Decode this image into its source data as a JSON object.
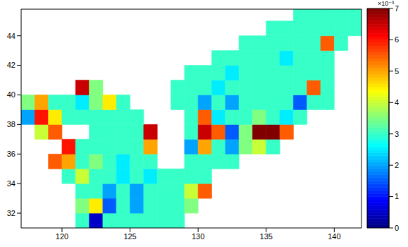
{
  "chart_data": {
    "type": "heatmap",
    "xlim": [
      117,
      142
    ],
    "ylim": [
      31,
      45.8
    ],
    "xticks": [
      120,
      125,
      130,
      135,
      140
    ],
    "yticks": [
      32,
      34,
      36,
      38,
      40,
      42,
      44
    ],
    "tick_labels": true,
    "grid": false,
    "cell_size": 1,
    "cells": [
      [
        121.5,
        31.5,
        3
      ],
      [
        122.5,
        31.5,
        0.5
      ],
      [
        123.5,
        31.5,
        3
      ],
      [
        124.5,
        31.5,
        3
      ],
      [
        125.5,
        31.5,
        3
      ],
      [
        126.5,
        31.5,
        3
      ],
      [
        127.5,
        31.5,
        3
      ],
      [
        128.5,
        31.5,
        3
      ],
      [
        121.5,
        32.5,
        3.5
      ],
      [
        122.5,
        32.5,
        4.5
      ],
      [
        123.5,
        32.5,
        1.5
      ],
      [
        124.5,
        32.5,
        3
      ],
      [
        125.5,
        32.5,
        2
      ],
      [
        126.5,
        32.5,
        3
      ],
      [
        127.5,
        32.5,
        3
      ],
      [
        128.5,
        32.5,
        3
      ],
      [
        129.5,
        32.5,
        3.5
      ],
      [
        121.5,
        33.5,
        3
      ],
      [
        122.5,
        33.5,
        3
      ],
      [
        123.5,
        33.5,
        2
      ],
      [
        124.5,
        33.5,
        3
      ],
      [
        125.5,
        33.5,
        2
      ],
      [
        126.5,
        33.5,
        3
      ],
      [
        127.5,
        33.5,
        3
      ],
      [
        128.5,
        33.5,
        3
      ],
      [
        129.5,
        33.5,
        4
      ],
      [
        130.5,
        33.5,
        5.5
      ],
      [
        120.5,
        34.5,
        3
      ],
      [
        121.5,
        34.5,
        4
      ],
      [
        122.5,
        34.5,
        3
      ],
      [
        123.5,
        34.5,
        3
      ],
      [
        124.5,
        34.5,
        2.5
      ],
      [
        125.5,
        34.5,
        3
      ],
      [
        126.5,
        34.5,
        2.5
      ],
      [
        127.5,
        34.5,
        3
      ],
      [
        128.5,
        34.5,
        3
      ],
      [
        129.5,
        34.5,
        3
      ],
      [
        130.5,
        34.5,
        3
      ],
      [
        119.5,
        35.5,
        5.5
      ],
      [
        120.5,
        35.5,
        5
      ],
      [
        121.5,
        35.5,
        3
      ],
      [
        122.5,
        35.5,
        3.5
      ],
      [
        123.5,
        35.5,
        3
      ],
      [
        124.5,
        35.5,
        2.5
      ],
      [
        125.5,
        35.5,
        3
      ],
      [
        126.5,
        35.5,
        3
      ],
      [
        129.5,
        35.5,
        3
      ],
      [
        130.5,
        35.5,
        3
      ],
      [
        131.5,
        35.5,
        3
      ],
      [
        132.5,
        35.5,
        3
      ],
      [
        120.5,
        36.5,
        6
      ],
      [
        121.5,
        36.5,
        3
      ],
      [
        122.5,
        36.5,
        3
      ],
      [
        123.5,
        36.5,
        3
      ],
      [
        124.5,
        36.5,
        3
      ],
      [
        125.5,
        36.5,
        3
      ],
      [
        126.5,
        36.5,
        5
      ],
      [
        129.5,
        36.5,
        2
      ],
      [
        130.5,
        36.5,
        5
      ],
      [
        131.5,
        36.5,
        3
      ],
      [
        132.5,
        36.5,
        2
      ],
      [
        133.5,
        36.5,
        3.5
      ],
      [
        134.5,
        36.5,
        4
      ],
      [
        135.5,
        36.5,
        3
      ],
      [
        118.5,
        37.5,
        4
      ],
      [
        119.5,
        37.5,
        5.5
      ],
      [
        122.5,
        37.5,
        3
      ],
      [
        123.5,
        37.5,
        3
      ],
      [
        124.5,
        37.5,
        3
      ],
      [
        125.5,
        37.5,
        3
      ],
      [
        126.5,
        37.5,
        6.5
      ],
      [
        129.5,
        37.5,
        3
      ],
      [
        130.5,
        37.5,
        6.5
      ],
      [
        131.5,
        37.5,
        5.5
      ],
      [
        132.5,
        37.5,
        1.5
      ],
      [
        133.5,
        37.5,
        3.5
      ],
      [
        134.5,
        37.5,
        7
      ],
      [
        135.5,
        37.5,
        7
      ],
      [
        136.5,
        37.5,
        5.5
      ],
      [
        117.5,
        38.5,
        2
      ],
      [
        118.5,
        38.5,
        6
      ],
      [
        119.5,
        38.5,
        4.5
      ],
      [
        120.5,
        38.5,
        3
      ],
      [
        121.5,
        38.5,
        3
      ],
      [
        122.5,
        38.5,
        3
      ],
      [
        123.5,
        38.5,
        3
      ],
      [
        124.5,
        38.5,
        3
      ],
      [
        125.5,
        38.5,
        3
      ],
      [
        129.5,
        38.5,
        3
      ],
      [
        130.5,
        38.5,
        5.5
      ],
      [
        131.5,
        38.5,
        2.5
      ],
      [
        132.5,
        38.5,
        3
      ],
      [
        133.5,
        38.5,
        3
      ],
      [
        134.5,
        38.5,
        3.5
      ],
      [
        135.5,
        38.5,
        3
      ],
      [
        136.5,
        38.5,
        2.5
      ],
      [
        137.5,
        38.5,
        3
      ],
      [
        117.5,
        39.5,
        3.5
      ],
      [
        118.5,
        39.5,
        5
      ],
      [
        119.5,
        39.5,
        3
      ],
      [
        120.5,
        39.5,
        3
      ],
      [
        121.5,
        39.5,
        2.5
      ],
      [
        122.5,
        39.5,
        3.5
      ],
      [
        123.5,
        39.5,
        4.5
      ],
      [
        124.5,
        39.5,
        3
      ],
      [
        128.5,
        39.5,
        3
      ],
      [
        129.5,
        39.5,
        3
      ],
      [
        130.5,
        39.5,
        2
      ],
      [
        131.5,
        39.5,
        3
      ],
      [
        132.5,
        39.5,
        2
      ],
      [
        133.5,
        39.5,
        3
      ],
      [
        134.5,
        39.5,
        3
      ],
      [
        135.5,
        39.5,
        3
      ],
      [
        136.5,
        39.5,
        3
      ],
      [
        137.5,
        39.5,
        1.5
      ],
      [
        138.5,
        39.5,
        3
      ],
      [
        139.5,
        39.5,
        3
      ],
      [
        121.5,
        40.5,
        6.5
      ],
      [
        122.5,
        40.5,
        3.5
      ],
      [
        128.5,
        40.5,
        3
      ],
      [
        129.5,
        40.5,
        3
      ],
      [
        130.5,
        40.5,
        3
      ],
      [
        131.5,
        40.5,
        2.5
      ],
      [
        132.5,
        40.5,
        3
      ],
      [
        133.5,
        40.5,
        3
      ],
      [
        134.5,
        40.5,
        3
      ],
      [
        135.5,
        40.5,
        3
      ],
      [
        136.5,
        40.5,
        3
      ],
      [
        137.5,
        40.5,
        3
      ],
      [
        138.5,
        40.5,
        5.5
      ],
      [
        139.5,
        40.5,
        3
      ],
      [
        129.5,
        41.5,
        3
      ],
      [
        130.5,
        41.5,
        3
      ],
      [
        131.5,
        41.5,
        3
      ],
      [
        132.5,
        41.5,
        2.5
      ],
      [
        133.5,
        41.5,
        3
      ],
      [
        134.5,
        41.5,
        3
      ],
      [
        135.5,
        41.5,
        3
      ],
      [
        136.5,
        41.5,
        3
      ],
      [
        137.5,
        41.5,
        3
      ],
      [
        138.5,
        41.5,
        3
      ],
      [
        139.5,
        41.5,
        3
      ],
      [
        131.5,
        42.5,
        3
      ],
      [
        132.5,
        42.5,
        3
      ],
      [
        133.5,
        42.5,
        3
      ],
      [
        134.5,
        42.5,
        3
      ],
      [
        135.5,
        42.5,
        3
      ],
      [
        136.5,
        42.5,
        2.5
      ],
      [
        137.5,
        42.5,
        3
      ],
      [
        138.5,
        42.5,
        3
      ],
      [
        139.5,
        42.5,
        3
      ],
      [
        133.5,
        43.5,
        3
      ],
      [
        134.5,
        43.5,
        3
      ],
      [
        135.5,
        43.5,
        3
      ],
      [
        136.5,
        43.5,
        3
      ],
      [
        137.5,
        43.5,
        3
      ],
      [
        138.5,
        43.5,
        3
      ],
      [
        139.5,
        43.5,
        5.5
      ],
      [
        140.5,
        43.5,
        3
      ],
      [
        135.5,
        44.5,
        3
      ],
      [
        136.5,
        44.5,
        3
      ],
      [
        137.5,
        44.5,
        3
      ],
      [
        138.5,
        44.5,
        3
      ],
      [
        139.5,
        44.5,
        3
      ],
      [
        140.5,
        44.5,
        3
      ],
      [
        141.5,
        44.5,
        3
      ],
      [
        137.5,
        45.5,
        3
      ],
      [
        138.5,
        45.5,
        3
      ],
      [
        139.5,
        45.5,
        3
      ],
      [
        140.5,
        45.5,
        3
      ],
      [
        141.5,
        45.5,
        3
      ]
    ],
    "colorbar": {
      "range": [
        0,
        7
      ],
      "ticks": [
        0,
        1,
        2,
        3,
        4,
        5,
        6,
        7
      ],
      "multiplier": "×10⁻³"
    }
  }
}
